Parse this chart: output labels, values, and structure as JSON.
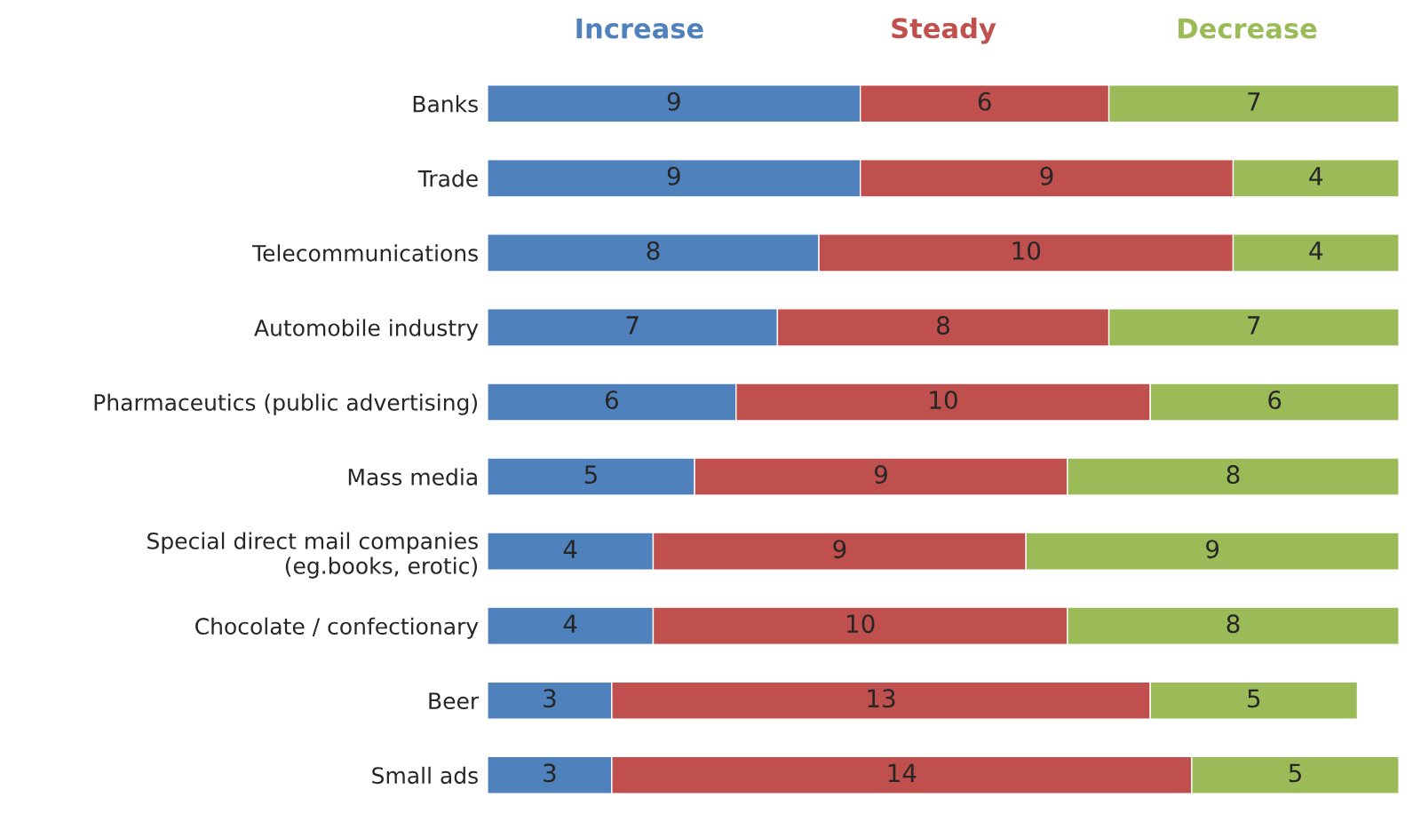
{
  "chart_data": {
    "type": "bar",
    "orientation": "horizontal",
    "stacked": true,
    "data_labels": true,
    "legend": "top",
    "grid": false,
    "tick_labels": "y",
    "categories": [
      "Banks",
      "Trade",
      "Telecommunications",
      "Automobile industry",
      "Pharmaceutics (public advertising)",
      "Mass media",
      "Special direct mail companies\n(eg.books, erotic)",
      "Chocolate / confectionary",
      "Beer",
      "Small ads"
    ],
    "series": [
      {
        "name": "Increase",
        "color": "#4f81bd",
        "values": [
          9,
          9,
          8,
          7,
          6,
          5,
          4,
          4,
          3,
          3
        ]
      },
      {
        "name": "Steady",
        "color": "#c0504d",
        "values": [
          6,
          9,
          10,
          8,
          10,
          9,
          9,
          10,
          13,
          14
        ]
      },
      {
        "name": "Decrease",
        "color": "#9bbb59",
        "values": [
          7,
          4,
          4,
          7,
          6,
          8,
          9,
          8,
          5,
          5
        ]
      }
    ]
  }
}
